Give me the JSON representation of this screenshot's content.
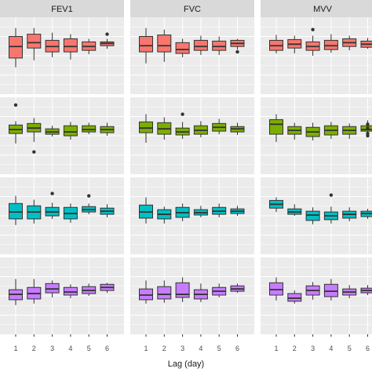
{
  "chart_data": {
    "type": "boxplot",
    "facet_layout": "grid",
    "columns": [
      "FEV1",
      "FVC",
      "MVV"
    ],
    "x": [
      "1",
      "2",
      "3",
      "4",
      "5",
      "6"
    ],
    "xlabel": "Lag (day)",
    "ylabel": "",
    "y_tick_labels_visible": false,
    "grid": true,
    "legend": "none",
    "theme": {
      "panel_bg": "#ebebeb",
      "grid_major": "#ffffff",
      "strip_bg": "#d9d9d9",
      "box_outline": "#333333"
    },
    "rows": [
      {
        "color": "#f8766d",
        "panels": [
          [
            {
              "lo": 0.35,
              "q1": 0.47,
              "med": 0.62,
              "q3": 0.75,
              "hi": 0.86,
              "out": []
            },
            {
              "lo": 0.44,
              "q1": 0.6,
              "med": 0.67,
              "q3": 0.78,
              "hi": 0.86,
              "out": []
            },
            {
              "lo": 0.48,
              "q1": 0.55,
              "med": 0.62,
              "q3": 0.7,
              "hi": 0.8,
              "out": []
            },
            {
              "lo": 0.45,
              "q1": 0.55,
              "med": 0.62,
              "q3": 0.72,
              "hi": 0.78,
              "out": []
            },
            {
              "lo": 0.52,
              "q1": 0.57,
              "med": 0.62,
              "q3": 0.68,
              "hi": 0.72,
              "out": []
            },
            {
              "lo": 0.59,
              "q1": 0.63,
              "med": 0.66,
              "q3": 0.68,
              "hi": 0.72,
              "out": [
                0.78
              ]
            }
          ],
          [
            {
              "lo": 0.4,
              "q1": 0.55,
              "med": 0.63,
              "q3": 0.75,
              "hi": 0.86,
              "out": []
            },
            {
              "lo": 0.42,
              "q1": 0.55,
              "med": 0.63,
              "q3": 0.77,
              "hi": 0.84,
              "out": []
            },
            {
              "lo": 0.48,
              "q1": 0.53,
              "med": 0.58,
              "q3": 0.67,
              "hi": 0.72,
              "out": []
            },
            {
              "lo": 0.51,
              "q1": 0.57,
              "med": 0.62,
              "q3": 0.7,
              "hi": 0.76,
              "out": []
            },
            {
              "lo": 0.51,
              "q1": 0.57,
              "med": 0.62,
              "q3": 0.69,
              "hi": 0.75,
              "out": []
            },
            {
              "lo": 0.58,
              "q1": 0.62,
              "med": 0.66,
              "q3": 0.7,
              "hi": 0.72,
              "out": [
                0.55
              ]
            }
          ],
          [
            {
              "lo": 0.53,
              "q1": 0.57,
              "med": 0.63,
              "q3": 0.7,
              "hi": 0.77,
              "out": []
            },
            {
              "lo": 0.53,
              "q1": 0.6,
              "med": 0.65,
              "q3": 0.71,
              "hi": 0.76,
              "out": []
            },
            {
              "lo": 0.5,
              "q1": 0.57,
              "med": 0.62,
              "q3": 0.68,
              "hi": 0.76,
              "out": [
                0.84
              ]
            },
            {
              "lo": 0.54,
              "q1": 0.58,
              "med": 0.63,
              "q3": 0.7,
              "hi": 0.78,
              "out": []
            },
            {
              "lo": 0.57,
              "q1": 0.62,
              "med": 0.67,
              "q3": 0.72,
              "hi": 0.76,
              "out": []
            },
            {
              "lo": 0.59,
              "q1": 0.61,
              "med": 0.65,
              "q3": 0.69,
              "hi": 0.73,
              "out": []
            }
          ]
        ]
      },
      {
        "color": "#7cae00",
        "panels": [
          [
            {
              "lo": 0.4,
              "q1": 0.53,
              "med": 0.58,
              "q3": 0.64,
              "hi": 0.69,
              "out": [
                0.9
              ]
            },
            {
              "lo": 0.42,
              "q1": 0.55,
              "med": 0.6,
              "q3": 0.66,
              "hi": 0.73,
              "out": [
                0.29
              ]
            },
            {
              "lo": 0.49,
              "q1": 0.52,
              "med": 0.55,
              "q3": 0.59,
              "hi": 0.63,
              "out": []
            },
            {
              "lo": 0.45,
              "q1": 0.5,
              "med": 0.55,
              "q3": 0.63,
              "hi": 0.68,
              "out": []
            },
            {
              "lo": 0.52,
              "q1": 0.55,
              "med": 0.58,
              "q3": 0.63,
              "hi": 0.67,
              "out": []
            },
            {
              "lo": 0.5,
              "q1": 0.54,
              "med": 0.58,
              "q3": 0.62,
              "hi": 0.67,
              "out": []
            }
          ],
          [
            {
              "lo": 0.41,
              "q1": 0.54,
              "med": 0.6,
              "q3": 0.68,
              "hi": 0.78,
              "out": []
            },
            {
              "lo": 0.45,
              "q1": 0.52,
              "med": 0.59,
              "q3": 0.67,
              "hi": 0.74,
              "out": []
            },
            {
              "lo": 0.46,
              "q1": 0.51,
              "med": 0.55,
              "q3": 0.6,
              "hi": 0.68,
              "out": [
                0.78
              ]
            },
            {
              "lo": 0.48,
              "q1": 0.52,
              "med": 0.57,
              "q3": 0.63,
              "hi": 0.69,
              "out": []
            },
            {
              "lo": 0.52,
              "q1": 0.56,
              "med": 0.61,
              "q3": 0.66,
              "hi": 0.72,
              "out": []
            },
            {
              "lo": 0.51,
              "q1": 0.55,
              "med": 0.59,
              "q3": 0.62,
              "hi": 0.67,
              "out": []
            }
          ],
          [
            {
              "lo": 0.42,
              "q1": 0.52,
              "med": 0.65,
              "q3": 0.71,
              "hi": 0.78,
              "out": []
            },
            {
              "lo": 0.45,
              "q1": 0.52,
              "med": 0.57,
              "q3": 0.62,
              "hi": 0.67,
              "out": []
            },
            {
              "lo": 0.44,
              "q1": 0.49,
              "med": 0.55,
              "q3": 0.61,
              "hi": 0.67,
              "out": []
            },
            {
              "lo": 0.46,
              "q1": 0.51,
              "med": 0.57,
              "q3": 0.63,
              "hi": 0.68,
              "out": []
            },
            {
              "lo": 0.46,
              "q1": 0.52,
              "med": 0.57,
              "q3": 0.62,
              "hi": 0.66,
              "out": []
            },
            {
              "lo": 0.52,
              "q1": 0.56,
              "med": 0.58,
              "q3": 0.63,
              "hi": 0.7,
              "out": [
                0.5,
                0.53,
                0.6,
                0.65
              ]
            }
          ]
        ]
      },
      {
        "color": "#00bfc4",
        "panels": [
          [
            {
              "lo": 0.38,
              "q1": 0.46,
              "med": 0.55,
              "q3": 0.66,
              "hi": 0.76,
              "out": []
            },
            {
              "lo": 0.4,
              "q1": 0.46,
              "med": 0.55,
              "q3": 0.63,
              "hi": 0.71,
              "out": []
            },
            {
              "lo": 0.46,
              "q1": 0.5,
              "med": 0.55,
              "q3": 0.61,
              "hi": 0.67,
              "out": [
                0.79
              ]
            },
            {
              "lo": 0.41,
              "q1": 0.46,
              "med": 0.53,
              "q3": 0.61,
              "hi": 0.66,
              "out": []
            },
            {
              "lo": 0.52,
              "q1": 0.55,
              "med": 0.58,
              "q3": 0.62,
              "hi": 0.66,
              "out": [
                0.76
              ]
            },
            {
              "lo": 0.48,
              "q1": 0.52,
              "med": 0.56,
              "q3": 0.6,
              "hi": 0.65,
              "out": []
            }
          ],
          [
            {
              "lo": 0.4,
              "q1": 0.47,
              "med": 0.55,
              "q3": 0.64,
              "hi": 0.74,
              "out": []
            },
            {
              "lo": 0.4,
              "q1": 0.46,
              "med": 0.52,
              "q3": 0.58,
              "hi": 0.62,
              "out": []
            },
            {
              "lo": 0.43,
              "q1": 0.48,
              "med": 0.54,
              "q3": 0.61,
              "hi": 0.66,
              "out": []
            },
            {
              "lo": 0.48,
              "q1": 0.51,
              "med": 0.54,
              "q3": 0.58,
              "hi": 0.63,
              "out": []
            },
            {
              "lo": 0.48,
              "q1": 0.52,
              "med": 0.56,
              "q3": 0.61,
              "hi": 0.66,
              "out": []
            },
            {
              "lo": 0.5,
              "q1": 0.53,
              "med": 0.56,
              "q3": 0.59,
              "hi": 0.63,
              "out": []
            }
          ],
          [
            {
              "lo": 0.55,
              "q1": 0.6,
              "med": 0.65,
              "q3": 0.7,
              "hi": 0.74,
              "out": []
            },
            {
              "lo": 0.5,
              "q1": 0.52,
              "med": 0.55,
              "q3": 0.59,
              "hi": 0.65,
              "out": []
            },
            {
              "lo": 0.39,
              "q1": 0.44,
              "med": 0.51,
              "q3": 0.56,
              "hi": 0.61,
              "out": []
            },
            {
              "lo": 0.4,
              "q1": 0.45,
              "med": 0.5,
              "q3": 0.55,
              "hi": 0.62,
              "out": [
                0.77
              ]
            },
            {
              "lo": 0.43,
              "q1": 0.47,
              "med": 0.52,
              "q3": 0.56,
              "hi": 0.61,
              "out": []
            },
            {
              "lo": 0.46,
              "q1": 0.49,
              "med": 0.53,
              "q3": 0.56,
              "hi": 0.59,
              "out": []
            }
          ]
        ]
      },
      {
        "color": "#c77cff",
        "panels": [
          [
            {
              "lo": 0.38,
              "q1": 0.45,
              "med": 0.52,
              "q3": 0.58,
              "hi": 0.72,
              "out": []
            },
            {
              "lo": 0.4,
              "q1": 0.46,
              "med": 0.53,
              "q3": 0.61,
              "hi": 0.72,
              "out": []
            },
            {
              "lo": 0.48,
              "q1": 0.54,
              "med": 0.59,
              "q3": 0.66,
              "hi": 0.7,
              "out": []
            },
            {
              "lo": 0.47,
              "q1": 0.51,
              "med": 0.55,
              "q3": 0.61,
              "hi": 0.65,
              "out": []
            },
            {
              "lo": 0.5,
              "q1": 0.53,
              "med": 0.57,
              "q3": 0.62,
              "hi": 0.66,
              "out": []
            },
            {
              "lo": 0.54,
              "q1": 0.57,
              "med": 0.61,
              "q3": 0.65,
              "hi": 0.67,
              "out": []
            }
          ],
          [
            {
              "lo": 0.4,
              "q1": 0.45,
              "med": 0.51,
              "q3": 0.59,
              "hi": 0.7,
              "out": []
            },
            {
              "lo": 0.41,
              "q1": 0.46,
              "med": 0.52,
              "q3": 0.62,
              "hi": 0.7,
              "out": []
            },
            {
              "lo": 0.42,
              "q1": 0.48,
              "med": 0.52,
              "q3": 0.67,
              "hi": 0.74,
              "out": []
            },
            {
              "lo": 0.42,
              "q1": 0.46,
              "med": 0.52,
              "q3": 0.58,
              "hi": 0.66,
              "out": []
            },
            {
              "lo": 0.48,
              "q1": 0.51,
              "med": 0.56,
              "q3": 0.61,
              "hi": 0.66,
              "out": []
            },
            {
              "lo": 0.54,
              "q1": 0.56,
              "med": 0.59,
              "q3": 0.63,
              "hi": 0.66,
              "out": []
            }
          ],
          [
            {
              "lo": 0.44,
              "q1": 0.51,
              "med": 0.58,
              "q3": 0.67,
              "hi": 0.74,
              "out": []
            },
            {
              "lo": 0.4,
              "q1": 0.43,
              "med": 0.47,
              "q3": 0.53,
              "hi": 0.57,
              "out": []
            },
            {
              "lo": 0.45,
              "q1": 0.51,
              "med": 0.57,
              "q3": 0.63,
              "hi": 0.68,
              "out": []
            },
            {
              "lo": 0.44,
              "q1": 0.49,
              "med": 0.56,
              "q3": 0.65,
              "hi": 0.72,
              "out": []
            },
            {
              "lo": 0.47,
              "q1": 0.51,
              "med": 0.55,
              "q3": 0.59,
              "hi": 0.64,
              "out": []
            },
            {
              "lo": 0.51,
              "q1": 0.54,
              "med": 0.57,
              "q3": 0.6,
              "hi": 0.64,
              "out": []
            }
          ]
        ]
      }
    ]
  }
}
